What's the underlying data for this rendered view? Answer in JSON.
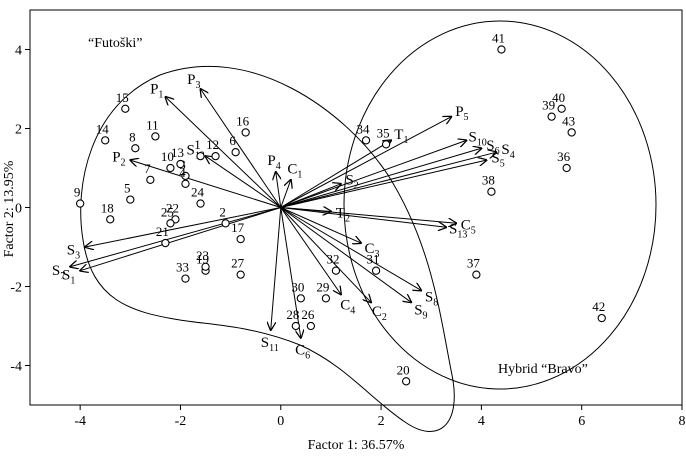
{
  "chart_data": {
    "type": "scatter",
    "xlabel": "Factor 1: 36.57%",
    "ylabel": "Factor 2: 13.95%",
    "xlim": [
      -5,
      8
    ],
    "ylim": [
      -5,
      5
    ],
    "xticks": [
      -4,
      -2,
      0,
      2,
      4,
      6,
      8
    ],
    "yticks": [
      -4,
      -2,
      0,
      2,
      4
    ],
    "xtick_labels": [
      "-4",
      "-2",
      "0",
      "2",
      "4",
      "6",
      "8"
    ],
    "ytick_labels": [
      "-4",
      "-2",
      "0",
      "2",
      "4"
    ],
    "grid": false,
    "groups": [
      {
        "label": "“Futoški”"
      },
      {
        "label": "Hybrid “Bravo”"
      }
    ],
    "points": [
      {
        "label": "1",
        "x": -1.6,
        "y": 1.3
      },
      {
        "label": "2",
        "x": -1.1,
        "y": -0.4
      },
      {
        "label": "3",
        "x": -1.9,
        "y": 0.8
      },
      {
        "label": "4",
        "x": -1.9,
        "y": 0.6
      },
      {
        "label": "5",
        "x": -3.0,
        "y": 0.2
      },
      {
        "label": "6",
        "x": -0.9,
        "y": 1.4
      },
      {
        "label": "7",
        "x": -2.6,
        "y": 0.7
      },
      {
        "label": "8",
        "x": -2.9,
        "y": 1.5
      },
      {
        "label": "9",
        "x": -4.0,
        "y": 0.1
      },
      {
        "label": "10",
        "x": -2.2,
        "y": 1.0
      },
      {
        "label": "11",
        "x": -2.5,
        "y": 1.8
      },
      {
        "label": "12",
        "x": -1.3,
        "y": 1.3
      },
      {
        "label": "13",
        "x": -2.0,
        "y": 1.1
      },
      {
        "label": "14",
        "x": -3.5,
        "y": 1.7
      },
      {
        "label": "15",
        "x": -3.1,
        "y": 2.5
      },
      {
        "label": "16",
        "x": -0.7,
        "y": 1.9
      },
      {
        "label": "17",
        "x": -0.8,
        "y": -0.8
      },
      {
        "label": "18",
        "x": -3.4,
        "y": -0.3
      },
      {
        "label": "19",
        "x": -1.5,
        "y": -1.6
      },
      {
        "label": "20",
        "x": 2.5,
        "y": -4.4
      },
      {
        "label": "21",
        "x": -2.3,
        "y": -0.9
      },
      {
        "label": "22",
        "x": -2.1,
        "y": -0.3
      },
      {
        "label": "23",
        "x": -1.5,
        "y": -1.5
      },
      {
        "label": "24",
        "x": -1.6,
        "y": 0.1
      },
      {
        "label": "25",
        "x": -2.2,
        "y": -0.4
      },
      {
        "label": "26",
        "x": 0.6,
        "y": -3.0
      },
      {
        "label": "27",
        "x": -0.8,
        "y": -1.7
      },
      {
        "label": "28",
        "x": 0.3,
        "y": -3.0
      },
      {
        "label": "29",
        "x": 0.9,
        "y": -2.3
      },
      {
        "label": "30",
        "x": 0.4,
        "y": -2.3
      },
      {
        "label": "31",
        "x": 1.9,
        "y": -1.6
      },
      {
        "label": "32",
        "x": 1.1,
        "y": -1.6
      },
      {
        "label": "33",
        "x": -1.9,
        "y": -1.8
      },
      {
        "label": "34",
        "x": 1.7,
        "y": 1.7
      },
      {
        "label": "35",
        "x": 2.1,
        "y": 1.6
      },
      {
        "label": "36",
        "x": 5.7,
        "y": 1.0
      },
      {
        "label": "37",
        "x": 3.9,
        "y": -1.7
      },
      {
        "label": "38",
        "x": 4.2,
        "y": 0.4
      },
      {
        "label": "39",
        "x": 5.4,
        "y": 2.3
      },
      {
        "label": "40",
        "x": 5.6,
        "y": 2.5
      },
      {
        "label": "41",
        "x": 4.4,
        "y": 4.0
      },
      {
        "label": "42",
        "x": 6.4,
        "y": -2.8
      },
      {
        "label": "43",
        "x": 5.8,
        "y": 1.9
      }
    ],
    "vectors": [
      {
        "label": "P",
        "sub": "1",
        "x": -2.3,
        "y": 2.8
      },
      {
        "label": "P",
        "sub": "3",
        "x": -1.6,
        "y": 3.0
      },
      {
        "label": "P",
        "sub": "2",
        "x": -3.0,
        "y": 1.2
      },
      {
        "label": "P",
        "sub": "4",
        "x": -0.1,
        "y": 0.9
      },
      {
        "label": "C",
        "sub": "1",
        "x": 0.2,
        "y": 0.7
      },
      {
        "label": "S",
        "sub": "12",
        "x": -1.5,
        "y": 1.3
      },
      {
        "label": "S",
        "sub": "2",
        "x": 1.2,
        "y": 0.6
      },
      {
        "label": "T",
        "sub": "2",
        "x": 1.0,
        "y": -0.1
      },
      {
        "label": "S",
        "sub": "3",
        "x": -3.9,
        "y": -1.0
      },
      {
        "label": "S",
        "sub": "7",
        "x": -4.2,
        "y": -1.5
      },
      {
        "label": "S",
        "sub": "1",
        "x": -4.0,
        "y": -1.6
      },
      {
        "label": "T",
        "sub": "1",
        "x": 2.2,
        "y": 1.7
      },
      {
        "label": "P",
        "sub": "5",
        "x": 3.4,
        "y": 2.3
      },
      {
        "label": "S",
        "sub": "10",
        "x": 3.7,
        "y": 1.7
      },
      {
        "label": "S",
        "sub": "6",
        "x": 4.0,
        "y": 1.5
      },
      {
        "label": "S",
        "sub": "4",
        "x": 4.3,
        "y": 1.4
      },
      {
        "label": "S",
        "sub": "5",
        "x": 4.1,
        "y": 1.2
      },
      {
        "label": "C",
        "sub": "5",
        "x": 3.5,
        "y": -0.4
      },
      {
        "label": "S",
        "sub": "13",
        "x": 3.3,
        "y": -0.5
      },
      {
        "label": "C",
        "sub": "3",
        "x": 1.6,
        "y": -0.9
      },
      {
        "label": "S",
        "sub": "8",
        "x": 2.8,
        "y": -2.1
      },
      {
        "label": "S",
        "sub": "9",
        "x": 2.6,
        "y": -2.4
      },
      {
        "label": "C",
        "sub": "4",
        "x": 1.2,
        "y": -2.2
      },
      {
        "label": "C",
        "sub": "2",
        "x": 1.8,
        "y": -2.4
      },
      {
        "label": "S",
        "sub": "11",
        "x": -0.2,
        "y": -3.1
      },
      {
        "label": "C",
        "sub": "6",
        "x": 0.4,
        "y": -3.3
      }
    ]
  }
}
